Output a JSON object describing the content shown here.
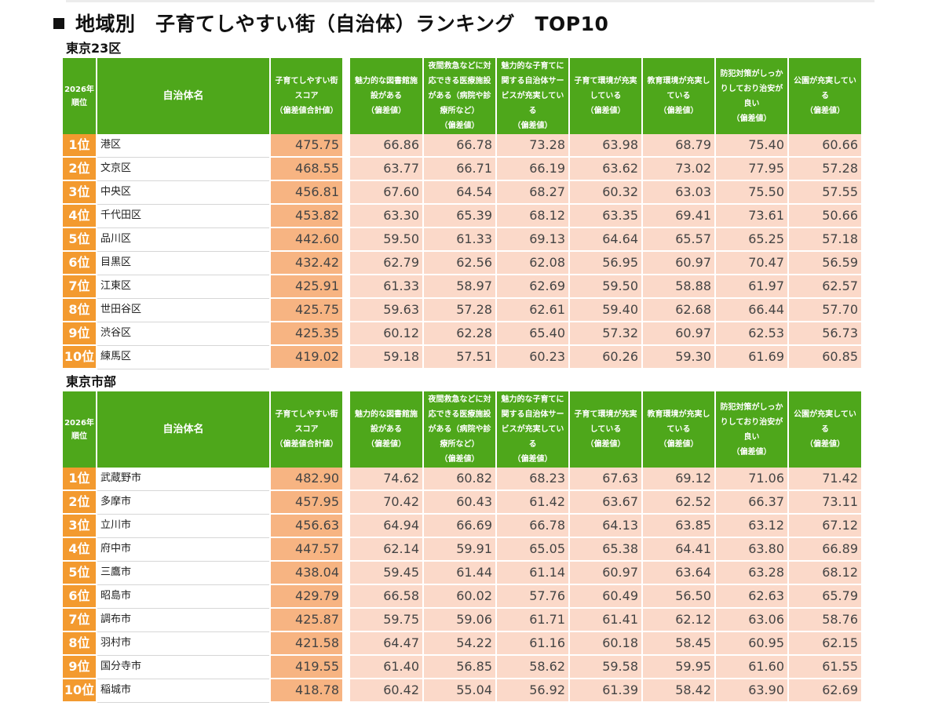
{
  "title": "地域別　子育てしやすい街（自治体）ランキング　TOP10",
  "headers": {
    "rank": "2026年 順位",
    "name": "自治体名",
    "score": "子育てしやすい街 スコア （偏差値合計値）",
    "metrics": [
      "魅力的な図書館施 設がある （偏差値）",
      "夜間救急などに対 応できる医療施設 がある（病院や診 療所など） （偏差値）",
      "魅力的な子育てに 関する自治体サー ビスが充実してい る （偏差値）",
      "子育て環境が充実 している （偏差値）",
      "教育環境が充実し ている （偏差値）",
      "防犯対策がしっか りしており治安が 良い （偏差値）",
      "公園が充実してい る （偏差値）"
    ]
  },
  "sections": [
    {
      "title": "東京23区",
      "rows": [
        {
          "rank": "1位",
          "name": "港区",
          "score": "475.75",
          "m": [
            "66.86",
            "66.78",
            "73.28",
            "63.98",
            "68.79",
            "75.40",
            "60.66"
          ]
        },
        {
          "rank": "2位",
          "name": "文京区",
          "score": "468.55",
          "m": [
            "63.77",
            "66.71",
            "66.19",
            "63.62",
            "73.02",
            "77.95",
            "57.28"
          ]
        },
        {
          "rank": "3位",
          "name": "中央区",
          "score": "456.81",
          "m": [
            "67.60",
            "64.54",
            "68.27",
            "60.32",
            "63.03",
            "75.50",
            "57.55"
          ]
        },
        {
          "rank": "4位",
          "name": "千代田区",
          "score": "453.82",
          "m": [
            "63.30",
            "65.39",
            "68.12",
            "63.35",
            "69.41",
            "73.61",
            "50.66"
          ]
        },
        {
          "rank": "5位",
          "name": "品川区",
          "score": "442.60",
          "m": [
            "59.50",
            "61.33",
            "69.13",
            "64.64",
            "65.57",
            "65.25",
            "57.18"
          ]
        },
        {
          "rank": "6位",
          "name": "目黒区",
          "score": "432.42",
          "m": [
            "62.79",
            "62.56",
            "62.08",
            "56.95",
            "60.97",
            "70.47",
            "56.59"
          ]
        },
        {
          "rank": "7位",
          "name": "江東区",
          "score": "425.91",
          "m": [
            "61.33",
            "58.97",
            "62.69",
            "59.50",
            "58.88",
            "61.97",
            "62.57"
          ]
        },
        {
          "rank": "8位",
          "name": "世田谷区",
          "score": "425.75",
          "m": [
            "59.63",
            "57.28",
            "62.61",
            "59.40",
            "62.68",
            "66.44",
            "57.70"
          ]
        },
        {
          "rank": "9位",
          "name": "渋谷区",
          "score": "425.35",
          "m": [
            "60.12",
            "62.28",
            "65.40",
            "57.32",
            "60.97",
            "62.53",
            "56.73"
          ]
        },
        {
          "rank": "10位",
          "name": "練馬区",
          "score": "419.02",
          "m": [
            "59.18",
            "57.51",
            "60.23",
            "60.26",
            "59.30",
            "61.69",
            "60.85"
          ]
        }
      ]
    },
    {
      "title": "東京市部",
      "rows": [
        {
          "rank": "1位",
          "name": "武蔵野市",
          "score": "482.90",
          "m": [
            "74.62",
            "60.82",
            "68.23",
            "67.63",
            "69.12",
            "71.06",
            "71.42"
          ]
        },
        {
          "rank": "2位",
          "name": "多摩市",
          "score": "457.95",
          "m": [
            "70.42",
            "60.43",
            "61.42",
            "63.67",
            "62.52",
            "66.37",
            "73.11"
          ]
        },
        {
          "rank": "3位",
          "name": "立川市",
          "score": "456.63",
          "m": [
            "64.94",
            "66.69",
            "66.78",
            "64.13",
            "63.85",
            "63.12",
            "67.12"
          ]
        },
        {
          "rank": "4位",
          "name": "府中市",
          "score": "447.57",
          "m": [
            "62.14",
            "59.91",
            "65.05",
            "65.38",
            "64.41",
            "63.80",
            "66.89"
          ]
        },
        {
          "rank": "5位",
          "name": "三鷹市",
          "score": "438.04",
          "m": [
            "59.45",
            "61.44",
            "61.14",
            "60.97",
            "63.64",
            "63.28",
            "68.12"
          ]
        },
        {
          "rank": "6位",
          "name": "昭島市",
          "score": "429.79",
          "m": [
            "66.58",
            "60.02",
            "57.76",
            "60.49",
            "56.50",
            "62.63",
            "65.79"
          ]
        },
        {
          "rank": "7位",
          "name": "調布市",
          "score": "425.87",
          "m": [
            "59.75",
            "59.06",
            "61.71",
            "61.41",
            "62.12",
            "63.06",
            "58.76"
          ]
        },
        {
          "rank": "8位",
          "name": "羽村市",
          "score": "421.58",
          "m": [
            "64.47",
            "54.22",
            "61.16",
            "60.18",
            "58.45",
            "60.95",
            "62.15"
          ]
        },
        {
          "rank": "9位",
          "name": "国分寺市",
          "score": "419.55",
          "m": [
            "61.40",
            "56.85",
            "58.62",
            "59.58",
            "59.95",
            "61.60",
            "61.55"
          ]
        },
        {
          "rank": "10位",
          "name": "稲城市",
          "score": "418.78",
          "m": [
            "60.42",
            "55.04",
            "56.92",
            "61.39",
            "58.42",
            "63.90",
            "62.69"
          ]
        }
      ]
    }
  ]
}
